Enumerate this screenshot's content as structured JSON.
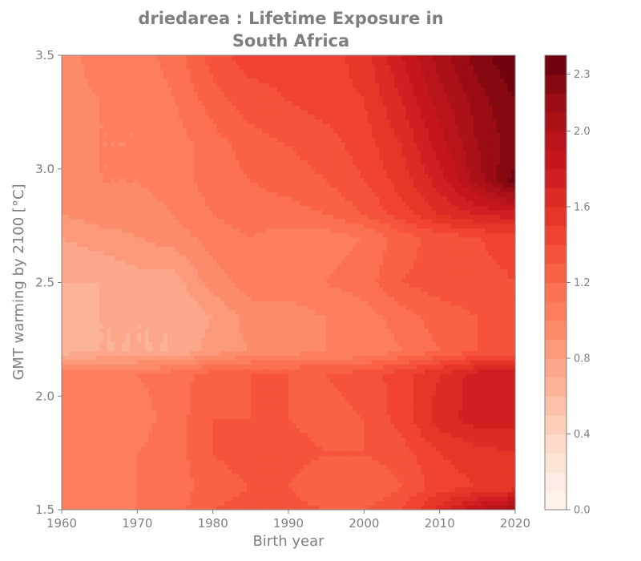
{
  "chart_data": {
    "type": "heatmap",
    "title_lines": [
      "driedarea : Lifetime Exposure in",
      "South Africa"
    ],
    "xlabel": "Birth year",
    "ylabel": "GMT warming by 2100 [°C]",
    "xlim": [
      1960,
      2020
    ],
    "ylim": [
      1.5,
      3.5
    ],
    "x_ticks": [
      1960,
      1970,
      1980,
      1990,
      2000,
      2010,
      2020
    ],
    "x_tick_labels": [
      "1960",
      "1970",
      "1980",
      "1990",
      "2000",
      "2010",
      "2020"
    ],
    "y_ticks": [
      1.5,
      2.0,
      2.5,
      3.0,
      3.5
    ],
    "y_tick_labels": [
      "1.5",
      "2.0",
      "2.5",
      "3.0",
      "3.5"
    ],
    "x": [
      1960,
      1965,
      1970,
      1975,
      1980,
      1985,
      1990,
      1995,
      2000,
      2005,
      2010,
      2015,
      2020
    ],
    "y": [
      1.5,
      1.6,
      1.75,
      1.9,
      2.1,
      2.2,
      2.35,
      2.5,
      2.7,
      2.8,
      2.95,
      3.1,
      3.3,
      3.5
    ],
    "z": [
      [
        1.05,
        1.05,
        1.1,
        1.15,
        1.3,
        1.35,
        1.35,
        1.3,
        1.3,
        1.4,
        1.65,
        1.9,
        2.1
      ],
      [
        1.05,
        1.05,
        1.1,
        1.15,
        1.25,
        1.3,
        1.3,
        1.2,
        1.2,
        1.3,
        1.45,
        1.5,
        1.55
      ],
      [
        1.05,
        1.05,
        1.1,
        1.15,
        1.3,
        1.35,
        1.35,
        1.3,
        1.3,
        1.35,
        1.5,
        1.55,
        1.6
      ],
      [
        1.05,
        1.0,
        1.05,
        1.15,
        1.3,
        1.3,
        1.3,
        1.25,
        1.3,
        1.45,
        1.65,
        1.75,
        1.75
      ],
      [
        1.05,
        1.05,
        1.1,
        1.15,
        1.25,
        1.3,
        1.3,
        1.3,
        1.35,
        1.45,
        1.6,
        1.75,
        1.8
      ],
      [
        0.65,
        0.7,
        0.7,
        0.7,
        0.85,
        0.9,
        0.95,
        1.0,
        1.0,
        1.1,
        1.2,
        1.3,
        1.35
      ],
      [
        0.65,
        0.7,
        0.7,
        0.7,
        0.8,
        0.95,
        0.95,
        1.0,
        1.05,
        1.15,
        1.25,
        1.3,
        1.35
      ],
      [
        0.7,
        0.7,
        0.75,
        0.75,
        0.95,
        1.05,
        1.05,
        1.1,
        1.15,
        1.3,
        1.35,
        1.35,
        1.4
      ],
      [
        0.8,
        0.85,
        0.9,
        0.95,
        1.05,
        1.1,
        1.05,
        1.05,
        1.1,
        1.25,
        1.35,
        1.4,
        1.45
      ],
      [
        0.9,
        0.95,
        0.95,
        1.0,
        1.1,
        1.15,
        1.15,
        1.2,
        1.3,
        1.45,
        1.6,
        1.7,
        1.75
      ],
      [
        0.95,
        1.0,
        1.0,
        1.05,
        1.15,
        1.2,
        1.25,
        1.3,
        1.4,
        1.55,
        1.75,
        2.05,
        2.35
      ],
      [
        0.95,
        1.0,
        1.0,
        1.05,
        1.15,
        1.25,
        1.3,
        1.35,
        1.45,
        1.6,
        1.85,
        2.1,
        2.25
      ],
      [
        0.95,
        1.0,
        1.0,
        1.1,
        1.25,
        1.35,
        1.4,
        1.45,
        1.5,
        1.7,
        1.95,
        2.15,
        2.3
      ],
      [
        0.95,
        1.05,
        1.05,
        1.15,
        1.35,
        1.45,
        1.45,
        1.45,
        1.55,
        1.8,
        2.05,
        2.25,
        2.4
      ]
    ],
    "colormap": "Reds",
    "colorbar": {
      "min": 0.0,
      "max": 2.4,
      "levels": 24,
      "ticks": [
        0.0,
        0.4,
        0.8,
        1.2,
        1.6,
        2.0,
        2.3
      ],
      "tick_labels": [
        "0.0",
        "0.4",
        "0.8",
        "1.2",
        "1.6",
        "2.0",
        "2.3"
      ]
    },
    "grid": false,
    "text_color": "#7f7f7f"
  }
}
